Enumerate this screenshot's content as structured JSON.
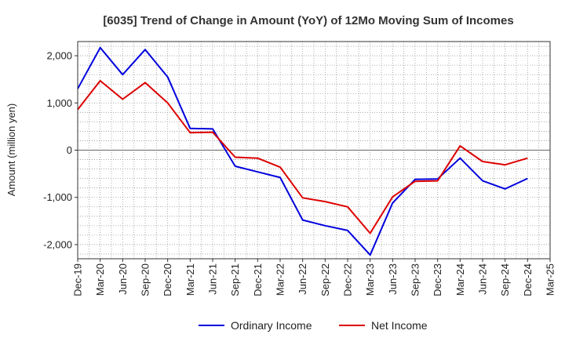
{
  "chart_data": {
    "type": "line",
    "title": "[6035]  Trend of Change in Amount (YoY) of 12Mo Moving Sum of Incomes",
    "xlabel": "",
    "ylabel": "Amount (million yen)",
    "ylim": [
      -2300,
      2300
    ],
    "yticks": [
      2000,
      1000,
      0,
      -1000,
      -2000
    ],
    "ytick_labels": [
      "2,000",
      "1,000",
      "0",
      "-1,000",
      "-2,000"
    ],
    "categories": [
      "Dec-19",
      "Mar-20",
      "Jun-20",
      "Sep-20",
      "Dec-20",
      "Mar-21",
      "Jun-21",
      "Sep-21",
      "Dec-21",
      "Mar-22",
      "Jun-22",
      "Sep-22",
      "Dec-22",
      "Mar-23",
      "Jun-23",
      "Sep-23",
      "Dec-23",
      "Mar-24",
      "Jun-24",
      "Sep-24",
      "Dec-24",
      "Mar-25"
    ],
    "grid": true,
    "legend_position": "bottom",
    "series": [
      {
        "name": "Ordinary Income",
        "color": "#0000dd",
        "values": [
          1300,
          2170,
          1600,
          2130,
          1550,
          460,
          450,
          -340,
          -460,
          -580,
          -1480,
          -1600,
          -1700,
          -2220,
          -1120,
          -620,
          -610,
          -170,
          -650,
          -820,
          -600,
          null
        ]
      },
      {
        "name": "Net Income",
        "color": "#dd0000",
        "values": [
          860,
          1470,
          1080,
          1430,
          1000,
          370,
          380,
          -150,
          -170,
          -360,
          -1010,
          -1090,
          -1200,
          -1760,
          -990,
          -660,
          -650,
          90,
          -240,
          -310,
          -170,
          null
        ]
      }
    ]
  }
}
